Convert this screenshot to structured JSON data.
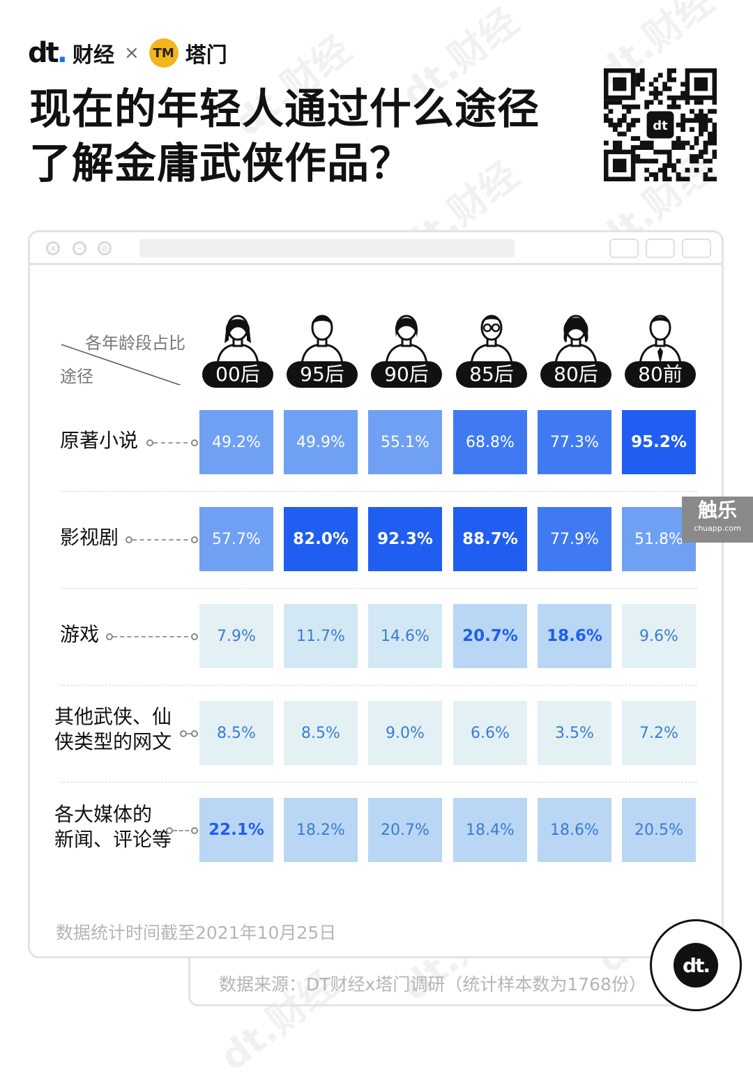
{
  "brand": {
    "logo_text": "dt",
    "name": "财经",
    "separator": "×",
    "partner_badge": "TM",
    "partner_name": "塔门"
  },
  "title_lines": [
    "现在的年轻人通过什么途径",
    "了解金庸武侠作品？"
  ],
  "watermark": "dt.财经",
  "table_header": {
    "corner_top": "各年龄段占比",
    "corner_left": "途径"
  },
  "chart_data": {
    "type": "heatmap",
    "title": "现在的年轻人通过什么途径了解金庸武侠作品？",
    "categories": [
      "00后",
      "95后",
      "90后",
      "85后",
      "80后",
      "80前"
    ],
    "rows": [
      {
        "label": "原著小说",
        "values": [
          "49.2%",
          "49.9%",
          "55.1%",
          "68.8%",
          "77.3%",
          "95.2%"
        ]
      },
      {
        "label": "影视剧",
        "values": [
          "57.7%",
          "82.0%",
          "92.3%",
          "88.7%",
          "77.9%",
          "51.8%"
        ]
      },
      {
        "label": "游戏",
        "values": [
          "7.9%",
          "11.7%",
          "14.6%",
          "20.7%",
          "18.6%",
          "9.6%"
        ]
      },
      {
        "label": "其他武侠、仙侠类型的网文",
        "label_lines": [
          "其他武侠、仙",
          "侠类型的网文"
        ],
        "values": [
          "8.5%",
          "8.5%",
          "9.0%",
          "6.6%",
          "3.5%",
          "7.2%"
        ]
      },
      {
        "label": "各大媒体的新闻、评论等",
        "label_lines": [
          "各大媒体的",
          "新闻、评论等"
        ],
        "values": [
          "22.1%",
          "18.2%",
          "20.7%",
          "18.4%",
          "18.6%",
          "20.5%"
        ]
      }
    ],
    "highlighted": [
      [
        0,
        5
      ],
      [
        1,
        1
      ],
      [
        1,
        2
      ],
      [
        1,
        3
      ],
      [
        2,
        3
      ],
      [
        2,
        4
      ],
      [
        4,
        0
      ]
    ],
    "colors": {
      "very_high": "#1f5ef0",
      "high": "#3f7af2",
      "mid": "#6fa0f3",
      "low_mid": "#b9d6f4",
      "low": "#d3e8f5",
      "very_low": "#e3f1f4"
    }
  },
  "note": "数据统计时间截至2021年10月25日",
  "source": "数据来源：DT财经x塔门调研（统计样本数为1768份）",
  "side_badge": {
    "name": "触乐",
    "url": "chuapp.com"
  },
  "corner_logo": "dt."
}
